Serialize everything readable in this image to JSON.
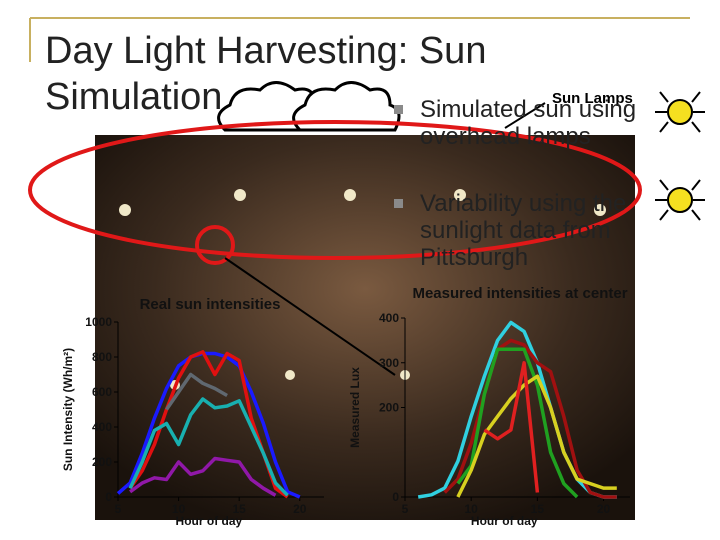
{
  "title": "Day Light Harvesting: Sun Simulation",
  "bullets": [
    "Simulated sun using overhead lamps",
    "Variability using the sunlight data from Pittsburgh"
  ],
  "annotation": "Sun Lamps",
  "chart_data": [
    {
      "type": "line",
      "title": "Real sun intensities",
      "x_label": "Hour of day",
      "y_label": "Sun Intensity (Wh/m²)",
      "x": [
        5,
        6,
        7,
        8,
        9,
        10,
        11,
        12,
        13,
        14,
        15,
        16,
        17,
        18,
        19,
        20
      ],
      "xlim": [
        5,
        22
      ],
      "xticks": [
        5,
        10,
        15,
        20
      ],
      "ylim": [
        0,
        1000
      ],
      "yticks": [
        0,
        200,
        400,
        600,
        800,
        1000
      ],
      "series": [
        {
          "color": "#1a1aff",
          "values": [
            20,
            80,
            250,
            450,
            620,
            750,
            800,
            820,
            820,
            800,
            750,
            600,
            420,
            200,
            30,
            0
          ]
        },
        {
          "color": "#e01010",
          "values": [
            null,
            50,
            150,
            300,
            500,
            680,
            800,
            830,
            700,
            820,
            780,
            450,
            250,
            50,
            0,
            null
          ]
        },
        {
          "color": "#606870",
          "values": [
            null,
            null,
            null,
            null,
            500,
            600,
            700,
            650,
            620,
            580,
            null,
            null,
            null,
            null,
            null,
            null
          ]
        },
        {
          "color": "#18b0b0",
          "values": [
            null,
            50,
            200,
            380,
            420,
            300,
            470,
            560,
            510,
            520,
            550,
            400,
            250,
            80,
            10,
            null
          ]
        },
        {
          "color": "#9018a8",
          "values": [
            null,
            30,
            80,
            110,
            100,
            200,
            130,
            150,
            220,
            210,
            200,
            100,
            50,
            10,
            null,
            null
          ]
        }
      ]
    },
    {
      "type": "line",
      "title": "Measured intensities at center",
      "x_label": "Hour of day",
      "y_label": "Measured Lux",
      "x": [
        5,
        6,
        7,
        8,
        9,
        10,
        11,
        12,
        13,
        14,
        15,
        16,
        17,
        18,
        19,
        20,
        21
      ],
      "xlim": [
        5,
        22
      ],
      "xticks": [
        5,
        10,
        15,
        20
      ],
      "ylim": [
        0,
        400
      ],
      "yticks": [
        0,
        200,
        300,
        400
      ],
      "series": [
        {
          "color": "#30d0e0",
          "values": [
            null,
            0,
            5,
            20,
            80,
            180,
            270,
            350,
            390,
            370,
            300,
            200,
            100,
            40,
            10,
            0,
            0
          ]
        },
        {
          "color": "#a01010",
          "values": [
            null,
            null,
            null,
            10,
            40,
            120,
            230,
            330,
            350,
            340,
            300,
            280,
            180,
            60,
            10,
            0,
            0
          ]
        },
        {
          "color": "#20a020",
          "values": [
            null,
            null,
            null,
            null,
            30,
            70,
            230,
            330,
            330,
            330,
            250,
            100,
            30,
            0,
            null,
            null,
            null
          ]
        },
        {
          "color": "#d8d020",
          "values": [
            null,
            null,
            null,
            null,
            0,
            60,
            140,
            180,
            220,
            250,
            270,
            200,
            100,
            40,
            30,
            20,
            20
          ]
        },
        {
          "color": "#e02020",
          "values": [
            null,
            null,
            null,
            null,
            null,
            null,
            150,
            130,
            150,
            300,
            10,
            null,
            null,
            null,
            null,
            null,
            null
          ]
        }
      ]
    }
  ]
}
